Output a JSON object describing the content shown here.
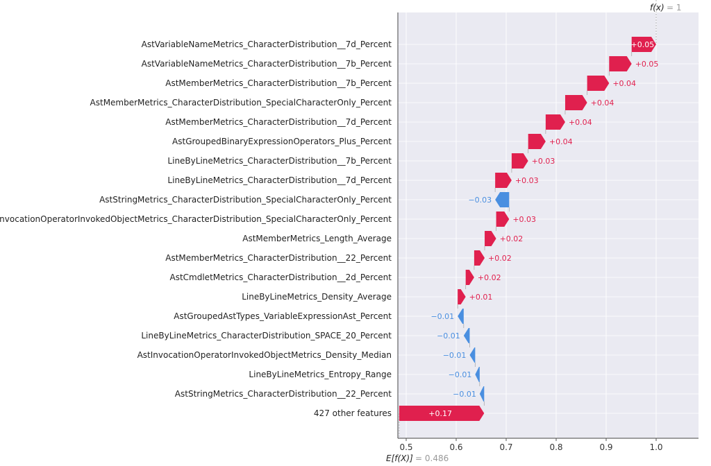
{
  "chart_data": {
    "type": "waterfall",
    "base_value_label": "E[f(X)]",
    "base_value": "= 0.486",
    "output_label": "f(x)",
    "output_value": "= 1",
    "base": 0.486,
    "xlim": [
      0.485,
      1.085
    ],
    "xticks": [
      "0.5",
      "0.6",
      "0.7",
      "0.8",
      "0.9",
      "1.0"
    ],
    "xtick_values": [
      0.5,
      0.6,
      0.7,
      0.8,
      0.9,
      1.0
    ],
    "colors": {
      "positive": "#e0204e",
      "negative": "#4a8fe0",
      "background": "#eaeaf2"
    },
    "features": [
      {
        "name": "AstVariableNameMetrics_CharacterDistribution__7d_Percent",
        "start": 0.951,
        "end": 1.0,
        "label": "+0.05"
      },
      {
        "name": "AstVariableNameMetrics_CharacterDistribution__7b_Percent",
        "start": 0.906,
        "end": 0.951,
        "label": "+0.05"
      },
      {
        "name": "AstMemberMetrics_CharacterDistribution__7b_Percent",
        "start": 0.862,
        "end": 0.906,
        "label": "+0.04"
      },
      {
        "name": "AstMemberMetrics_CharacterDistribution_SpecialCharacterOnly_Percent",
        "start": 0.818,
        "end": 0.862,
        "label": "+0.04"
      },
      {
        "name": "AstMemberMetrics_CharacterDistribution__7d_Percent",
        "start": 0.779,
        "end": 0.818,
        "label": "+0.04"
      },
      {
        "name": "AstGroupedBinaryExpressionOperators_Plus_Percent",
        "start": 0.744,
        "end": 0.779,
        "label": "+0.04"
      },
      {
        "name": "LineByLineMetrics_CharacterDistribution__7b_Percent",
        "start": 0.711,
        "end": 0.744,
        "label": "+0.03"
      },
      {
        "name": "LineByLineMetrics_CharacterDistribution__7d_Percent",
        "start": 0.678,
        "end": 0.711,
        "label": "+0.03"
      },
      {
        "name": "AstStringMetrics_CharacterDistribution_SpecialCharacterOnly_Percent",
        "start": 0.706,
        "end": 0.678,
        "label": "−0.03"
      },
      {
        "name": "AstInvocationOperatorInvokedObjectMetrics_CharacterDistribution_SpecialCharacterOnly_Percent",
        "start": 0.68,
        "end": 0.706,
        "label": "+0.03"
      },
      {
        "name": "AstMemberMetrics_Length_Average",
        "start": 0.657,
        "end": 0.68,
        "label": "+0.02"
      },
      {
        "name": "AstMemberMetrics_CharacterDistribution__22_Percent",
        "start": 0.636,
        "end": 0.657,
        "label": "+0.02"
      },
      {
        "name": "AstCmdletMetrics_CharacterDistribution__2d_Percent",
        "start": 0.619,
        "end": 0.636,
        "label": "+0.02"
      },
      {
        "name": "LineByLineMetrics_Density_Average",
        "start": 0.603,
        "end": 0.619,
        "label": "+0.01"
      },
      {
        "name": "AstGroupedAstTypes_VariableExpressionAst_Percent",
        "start": 0.615,
        "end": 0.603,
        "label": "−0.01"
      },
      {
        "name": "LineByLineMetrics_CharacterDistribution_SPACE_20_Percent",
        "start": 0.627,
        "end": 0.615,
        "label": "−0.01"
      },
      {
        "name": "AstInvocationOperatorInvokedObjectMetrics_Density_Median",
        "start": 0.638,
        "end": 0.627,
        "label": "−0.01"
      },
      {
        "name": "LineByLineMetrics_Entropy_Range",
        "start": 0.647,
        "end": 0.638,
        "label": "−0.01"
      },
      {
        "name": "AstStringMetrics_CharacterDistribution__22_Percent",
        "start": 0.656,
        "end": 0.647,
        "label": "−0.01"
      },
      {
        "name": "427 other features",
        "start": 0.486,
        "end": 0.656,
        "label": "+0.17"
      }
    ]
  }
}
